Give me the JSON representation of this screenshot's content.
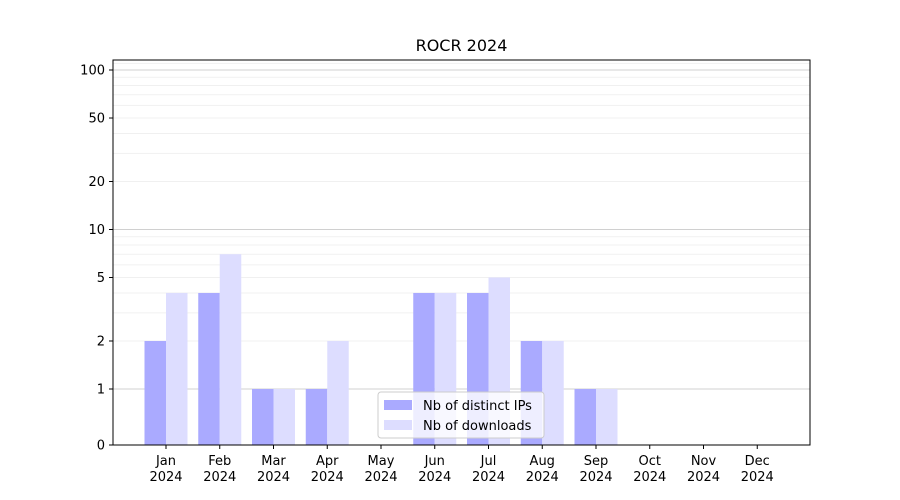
{
  "chart_data": {
    "type": "bar",
    "title": "ROCR 2024",
    "xlabel": "",
    "ylabel": "",
    "scale": "symlog",
    "ylim": [
      0,
      120
    ],
    "yticks": [
      0,
      1,
      2,
      5,
      10,
      20,
      50,
      100
    ],
    "categories": [
      "Jan\n2024",
      "Feb\n2024",
      "Mar\n2024",
      "Apr\n2024",
      "May\n2024",
      "Jun\n2024",
      "Jul\n2024",
      "Aug\n2024",
      "Sep\n2024",
      "Oct\n2024",
      "Nov\n2024",
      "Dec\n2024"
    ],
    "series": [
      {
        "name": "Nb of distinct IPs",
        "color": "#aaaaff",
        "values": [
          2,
          4,
          1,
          1,
          0,
          4,
          4,
          2,
          1,
          0,
          0,
          0
        ]
      },
      {
        "name": "Nb of downloads",
        "color": "#ddddff",
        "values": [
          4,
          7,
          1,
          2,
          0,
          4,
          5,
          2,
          1,
          0,
          0,
          0
        ]
      }
    ],
    "legend_position": "lower center",
    "grid": true
  }
}
